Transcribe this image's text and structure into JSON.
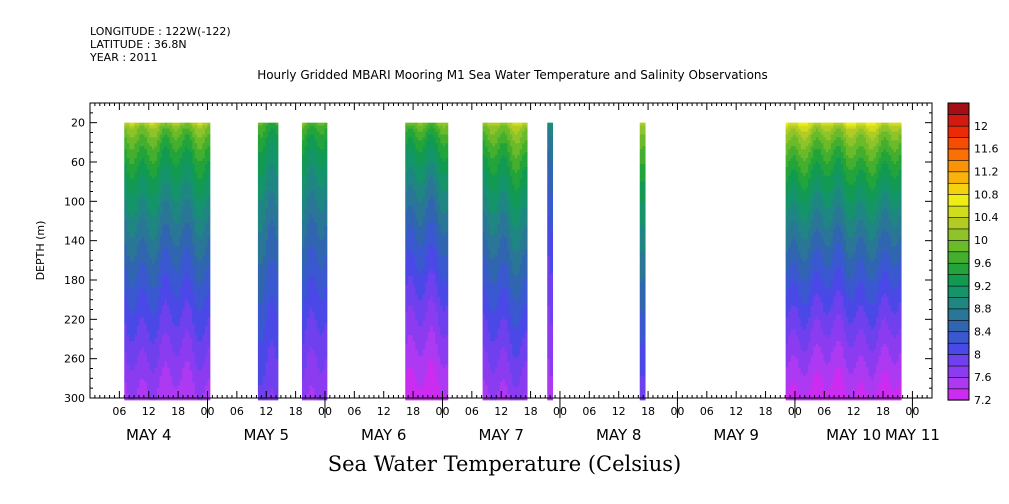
{
  "header": {
    "longitude": "LONGITUDE : 122W(-122)",
    "latitude": "LATITUDE : 36.8N",
    "year": "YEAR : 2011",
    "title": "Hourly Gridded MBARI Mooring M1 Sea Water Temperature and Salinity Observations"
  },
  "subtitle": "Sea Water Temperature (Celsius)",
  "chart_data": {
    "type": "heatmap",
    "title": "Hourly Gridded MBARI Mooring M1 Sea Water Temperature and Salinity Observations",
    "subtitle": "Sea Water Temperature (Celsius)",
    "ylabel": "DEPTH (m)",
    "ylim": [
      300,
      0
    ],
    "y_ticks": [
      "20",
      "60",
      "100",
      "140",
      "180",
      "220",
      "260",
      "300"
    ],
    "y_tick_values": [
      20,
      60,
      100,
      140,
      180,
      220,
      260,
      300
    ],
    "x_ticks": [
      "06",
      "12",
      "18",
      "00",
      "06",
      "12",
      "18",
      "00",
      "06",
      "12",
      "18",
      "00",
      "06",
      "12",
      "18",
      "00",
      "06",
      "12",
      "18",
      "00",
      "06",
      "12",
      "18",
      "00",
      "06",
      "12",
      "18",
      "00"
    ],
    "x_tick_hours": [
      78,
      84,
      90,
      96,
      102,
      108,
      114,
      120,
      126,
      132,
      138,
      144,
      150,
      156,
      162,
      168,
      174,
      180,
      186,
      192,
      198,
      204,
      210,
      216,
      222,
      228,
      234,
      240
    ],
    "day_labels": [
      {
        "label": "MAY  4",
        "hour": 84
      },
      {
        "label": "MAY  5",
        "hour": 108
      },
      {
        "label": "MAY  6",
        "hour": 132
      },
      {
        "label": "MAY  7",
        "hour": 156
      },
      {
        "label": "MAY  8",
        "hour": 180
      },
      {
        "label": "MAY  9",
        "hour": 204
      },
      {
        "label": "MAY 10",
        "hour": 228
      },
      {
        "label": "MAY 11",
        "hour": 240
      }
    ],
    "xlim_hours": [
      72,
      244
    ],
    "colorbar": {
      "labels": [
        "12",
        "11.6",
        "11.2",
        "10.8",
        "10.4",
        "10",
        "9.6",
        "9.2",
        "8.8",
        "8.4",
        "8",
        "7.6",
        "7.2"
      ],
      "levels": [
        7.2,
        7.4,
        7.6,
        7.8,
        8.0,
        8.2,
        8.4,
        8.6,
        8.8,
        9.0,
        9.2,
        9.4,
        9.6,
        9.8,
        10.0,
        10.2,
        10.4,
        10.6,
        10.8,
        11.0,
        11.2,
        11.4,
        11.6,
        11.8,
        12.0,
        12.2
      ],
      "colors": [
        "#cc2cf0",
        "#ad3af2",
        "#8c3cf0",
        "#6e40ee",
        "#4a48e6",
        "#3a58d0",
        "#3066b0",
        "#2a7696",
        "#1f8682",
        "#15946a",
        "#129a52",
        "#22a43a",
        "#44ae2e",
        "#6aba2a",
        "#8ec42a",
        "#b2cc24",
        "#cfdd1c",
        "#eeee14",
        "#f4d30e",
        "#f8b40a",
        "#fa9406",
        "#fa7004",
        "#f64c04",
        "#ec2a08",
        "#d21a10",
        "#a20f14"
      ]
    },
    "data_segments": [
      {
        "start_hour": 79.0,
        "end_hour": 96.5,
        "surface_temp": 10.2,
        "bottom_temp": 7.5,
        "top_depth": 20
      },
      {
        "start_hour": 106.3,
        "end_hour": 110.4,
        "surface_temp": 9.6,
        "bottom_temp": 7.8,
        "top_depth": 20
      },
      {
        "start_hour": 115.3,
        "end_hour": 120.4,
        "surface_temp": 9.8,
        "bottom_temp": 7.6,
        "top_depth": 20
      },
      {
        "start_hour": 136.4,
        "end_hour": 145.1,
        "surface_temp": 10.0,
        "bottom_temp": 7.3,
        "top_depth": 20
      },
      {
        "start_hour": 152.2,
        "end_hour": 161.3,
        "surface_temp": 10.3,
        "bottom_temp": 7.6,
        "top_depth": 20
      },
      {
        "start_hour": 165.4,
        "end_hour": 166.5,
        "surface_temp": 9.0,
        "bottom_temp": 7.5,
        "top_depth": 20
      },
      {
        "start_hour": 184.3,
        "end_hour": 185.4,
        "surface_temp": 10.2,
        "bottom_temp": 7.8,
        "top_depth": 20
      },
      {
        "start_hour": 214.1,
        "end_hour": 237.7,
        "surface_temp": 10.5,
        "bottom_temp": 7.3,
        "top_depth": 20
      }
    ]
  }
}
